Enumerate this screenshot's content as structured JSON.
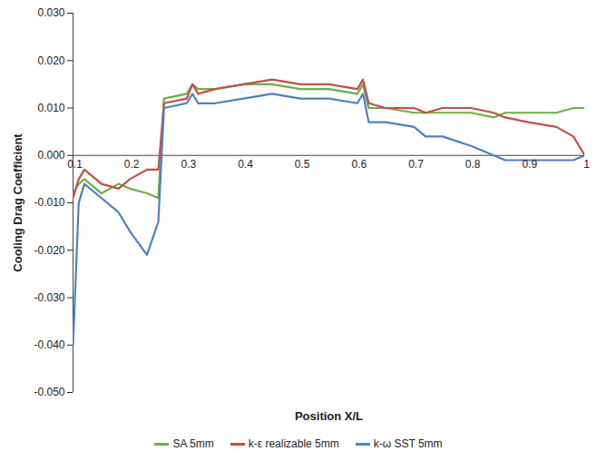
{
  "chart_data": {
    "type": "line",
    "x_label": "Position X/L",
    "y_label": "Cooling Drag Coefficient",
    "x": [
      0.1,
      0.11,
      0.12,
      0.15,
      0.18,
      0.2,
      0.23,
      0.25,
      0.26,
      0.3,
      0.31,
      0.32,
      0.35,
      0.4,
      0.45,
      0.5,
      0.55,
      0.6,
      0.61,
      0.62,
      0.65,
      0.7,
      0.72,
      0.75,
      0.8,
      0.84,
      0.86,
      0.9,
      0.95,
      0.98,
      1.0
    ],
    "series": [
      {
        "name": "SA 5mm",
        "color": "#70ad47",
        "line_style": "solid",
        "values": [
          -0.008,
          -0.006,
          -0.005,
          -0.008,
          -0.006,
          -0.007,
          -0.008,
          -0.009,
          0.012,
          0.013,
          0.015,
          0.014,
          0.014,
          0.015,
          0.015,
          0.014,
          0.014,
          0.013,
          0.015,
          0.01,
          0.01,
          0.009,
          0.009,
          0.009,
          0.009,
          0.008,
          0.009,
          0.009,
          0.009,
          0.01,
          0.01
        ]
      },
      {
        "name": "k-ε realizable 5mm",
        "color": "#c0504d",
        "line_style": "solid",
        "values": [
          -0.009,
          -0.005,
          -0.003,
          -0.006,
          -0.007,
          -0.005,
          -0.003,
          -0.003,
          0.011,
          0.012,
          0.015,
          0.013,
          0.014,
          0.015,
          0.016,
          0.015,
          0.015,
          0.014,
          0.016,
          0.011,
          0.01,
          0.01,
          0.009,
          0.01,
          0.01,
          0.009,
          0.008,
          0.007,
          0.006,
          0.004,
          0.0
        ]
      },
      {
        "name": "k-ω SST 5mm",
        "color": "#4f81bd",
        "line_style": "solid",
        "values": [
          -0.04,
          -0.01,
          -0.006,
          -0.009,
          -0.012,
          -0.016,
          -0.021,
          -0.014,
          0.01,
          0.011,
          0.013,
          0.011,
          0.011,
          0.012,
          0.013,
          0.012,
          0.012,
          0.011,
          0.013,
          0.007,
          0.007,
          0.006,
          0.004,
          0.004,
          0.002,
          0.0,
          -0.001,
          -0.001,
          -0.001,
          -0.001,
          0.0
        ]
      }
    ],
    "xlim": [
      0.1,
      1
    ],
    "xticks": [
      0.1,
      0.2,
      0.3,
      0.4,
      0.5,
      0.6,
      0.7,
      0.8,
      0.9,
      1
    ],
    "ylim": [
      -0.05,
      0.03
    ],
    "yticks": [
      {
        "value": -0.05,
        "label": "-0.050"
      },
      {
        "value": -0.04,
        "label": "-0.040"
      },
      {
        "value": -0.03,
        "label": "-0.030"
      },
      {
        "value": -0.02,
        "label": "-0.020"
      },
      {
        "value": -0.01,
        "label": "-0.010"
      },
      {
        "value": 0,
        "label": "0.000"
      },
      {
        "value": 0.01,
        "label": "0.010"
      },
      {
        "value": 0.02,
        "label": "0.020"
      },
      {
        "value": 0.03,
        "label": "0.030"
      }
    ],
    "grid": false,
    "legend": "bottom"
  }
}
